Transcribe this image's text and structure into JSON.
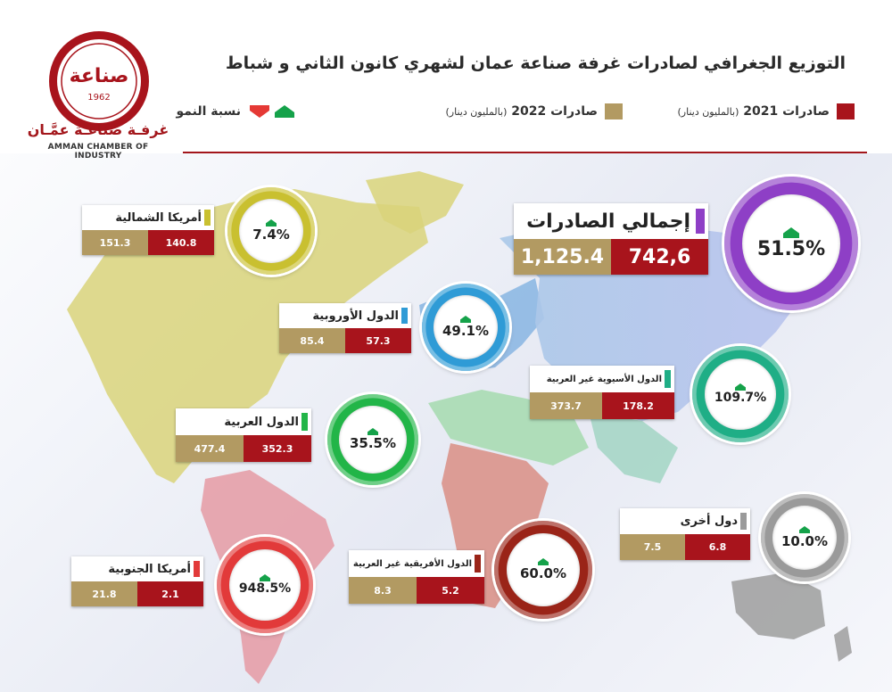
{
  "header": {
    "title": "التوزيع الجغرافي لصادرات غرفة صناعة عمان لشهري كانون الثاني و شباط",
    "logo_text_ar": "غرفـة صناعـة عمَّـان",
    "logo_text_en": "AMMAN CHAMBER OF INDUSTRY",
    "logo_mark": "صناعة",
    "logo_year": "1962"
  },
  "legend": {
    "exports_2021": "صادرات 2021",
    "exports_2022": "صادرات 2022",
    "unit": "(بالمليون دينار)",
    "growth": "نسبة النمو"
  },
  "colors": {
    "brand_red": "#a8141c",
    "gold": "#b29a62",
    "growth_up": "#15a24a",
    "growth_down": "#e53935"
  },
  "chart_data": {
    "type": "table",
    "series": [
      {
        "name": "صادرات 2021",
        "unit": "(بالمليون دينار)"
      },
      {
        "name": "صادرات 2022",
        "unit": "(بالمليون دينار)"
      },
      {
        "name": "نسبة النمو"
      }
    ],
    "regions": [
      {
        "key": "total",
        "name": "إجمالي الصادرات",
        "v2021": "742,6",
        "v2022": "1,125.4",
        "growth": "51.5%",
        "color": "#8e3fc6"
      },
      {
        "key": "north_america",
        "name": "أمريكا الشمالية",
        "v2021": "140.8",
        "v2022": "151.3",
        "growth": "7.4%",
        "color": "#c9c030"
      },
      {
        "key": "europe",
        "name": "الدول الأوروبية",
        "v2021": "57.3",
        "v2022": "85.4",
        "growth": "49.1%",
        "color": "#2f9bd6"
      },
      {
        "key": "asia",
        "name": "الدول الأسيوية غير العربية",
        "v2021": "178.2",
        "v2022": "373.7",
        "growth": "109.7%",
        "color": "#1fae86"
      },
      {
        "key": "arab",
        "name": "الدول العربية",
        "v2021": "352.3",
        "v2022": "477.4",
        "growth": "35.5%",
        "color": "#22b548"
      },
      {
        "key": "other",
        "name": "دول أخرى",
        "v2021": "6.8",
        "v2022": "7.5",
        "growth": "10.0%",
        "color": "#9a9a9a"
      },
      {
        "key": "south_america",
        "name": "أمريكا الجنوبية",
        "v2021": "2.1",
        "v2022": "21.8",
        "growth": "948.5%",
        "color": "#e23a3a"
      },
      {
        "key": "africa",
        "name": "الدول الأفريقية غير العربية",
        "v2021": "5.2",
        "v2022": "8.3",
        "growth": "60.0%",
        "color": "#9a2418"
      }
    ]
  }
}
